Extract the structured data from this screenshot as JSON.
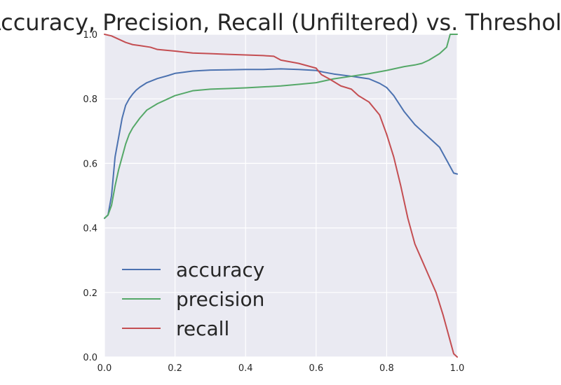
{
  "chart_data": {
    "type": "line",
    "title": "Accuracy, Precision, Recall (Unfiltered) vs. Threshold",
    "xlabel": "",
    "ylabel": "",
    "xlim": [
      0.0,
      1.0
    ],
    "ylim": [
      0.0,
      1.0
    ],
    "x_ticks": [
      "0.0",
      "0.2",
      "0.4",
      "0.6",
      "0.8",
      "1.0"
    ],
    "y_ticks": [
      "0.0",
      "0.2",
      "0.4",
      "0.6",
      "0.8",
      "1.0"
    ],
    "grid": true,
    "legend_position": "lower-left",
    "background_color": "#eaeaf2",
    "grid_color": "#ffffff",
    "series": [
      {
        "name": "accuracy",
        "color": "#4c72b0",
        "points": [
          [
            0.0,
            0.43
          ],
          [
            0.01,
            0.44
          ],
          [
            0.02,
            0.5
          ],
          [
            0.03,
            0.62
          ],
          [
            0.04,
            0.68
          ],
          [
            0.05,
            0.74
          ],
          [
            0.06,
            0.78
          ],
          [
            0.07,
            0.8
          ],
          [
            0.08,
            0.815
          ],
          [
            0.09,
            0.827
          ],
          [
            0.1,
            0.836
          ],
          [
            0.12,
            0.85
          ],
          [
            0.15,
            0.863
          ],
          [
            0.18,
            0.872
          ],
          [
            0.2,
            0.879
          ],
          [
            0.25,
            0.886
          ],
          [
            0.3,
            0.889
          ],
          [
            0.35,
            0.89
          ],
          [
            0.4,
            0.891
          ],
          [
            0.45,
            0.891
          ],
          [
            0.5,
            0.893
          ],
          [
            0.55,
            0.891
          ],
          [
            0.6,
            0.888
          ],
          [
            0.62,
            0.883
          ],
          [
            0.65,
            0.877
          ],
          [
            0.7,
            0.87
          ],
          [
            0.75,
            0.862
          ],
          [
            0.78,
            0.848
          ],
          [
            0.8,
            0.835
          ],
          [
            0.82,
            0.81
          ],
          [
            0.85,
            0.76
          ],
          [
            0.88,
            0.72
          ],
          [
            0.9,
            0.7
          ],
          [
            0.92,
            0.68
          ],
          [
            0.95,
            0.65
          ],
          [
            0.97,
            0.61
          ],
          [
            0.99,
            0.57
          ],
          [
            1.0,
            0.567
          ]
        ]
      },
      {
        "name": "precision",
        "color": "#55a868",
        "points": [
          [
            0.0,
            0.43
          ],
          [
            0.01,
            0.44
          ],
          [
            0.02,
            0.47
          ],
          [
            0.03,
            0.53
          ],
          [
            0.04,
            0.58
          ],
          [
            0.05,
            0.62
          ],
          [
            0.06,
            0.66
          ],
          [
            0.07,
            0.69
          ],
          [
            0.08,
            0.71
          ],
          [
            0.1,
            0.74
          ],
          [
            0.12,
            0.765
          ],
          [
            0.15,
            0.785
          ],
          [
            0.18,
            0.8
          ],
          [
            0.2,
            0.81
          ],
          [
            0.25,
            0.825
          ],
          [
            0.3,
            0.83
          ],
          [
            0.35,
            0.832
          ],
          [
            0.4,
            0.834
          ],
          [
            0.45,
            0.837
          ],
          [
            0.5,
            0.84
          ],
          [
            0.55,
            0.845
          ],
          [
            0.6,
            0.85
          ],
          [
            0.62,
            0.855
          ],
          [
            0.65,
            0.862
          ],
          [
            0.7,
            0.87
          ],
          [
            0.75,
            0.878
          ],
          [
            0.8,
            0.888
          ],
          [
            0.85,
            0.9
          ],
          [
            0.88,
            0.905
          ],
          [
            0.9,
            0.91
          ],
          [
            0.92,
            0.92
          ],
          [
            0.95,
            0.94
          ],
          [
            0.97,
            0.96
          ],
          [
            0.98,
            1.0
          ],
          [
            1.0,
            1.0
          ]
        ]
      },
      {
        "name": "recall",
        "color": "#c44e52",
        "points": [
          [
            0.0,
            1.0
          ],
          [
            0.02,
            0.995
          ],
          [
            0.04,
            0.985
          ],
          [
            0.06,
            0.975
          ],
          [
            0.08,
            0.968
          ],
          [
            0.1,
            0.965
          ],
          [
            0.13,
            0.96
          ],
          [
            0.15,
            0.953
          ],
          [
            0.2,
            0.948
          ],
          [
            0.25,
            0.942
          ],
          [
            0.3,
            0.94
          ],
          [
            0.35,
            0.938
          ],
          [
            0.4,
            0.936
          ],
          [
            0.45,
            0.934
          ],
          [
            0.48,
            0.932
          ],
          [
            0.5,
            0.92
          ],
          [
            0.55,
            0.91
          ],
          [
            0.6,
            0.895
          ],
          [
            0.615,
            0.875
          ],
          [
            0.64,
            0.86
          ],
          [
            0.67,
            0.84
          ],
          [
            0.7,
            0.83
          ],
          [
            0.72,
            0.81
          ],
          [
            0.75,
            0.79
          ],
          [
            0.78,
            0.75
          ],
          [
            0.8,
            0.69
          ],
          [
            0.82,
            0.62
          ],
          [
            0.84,
            0.53
          ],
          [
            0.86,
            0.43
          ],
          [
            0.88,
            0.35
          ],
          [
            0.9,
            0.3
          ],
          [
            0.92,
            0.25
          ],
          [
            0.94,
            0.2
          ],
          [
            0.96,
            0.13
          ],
          [
            0.98,
            0.05
          ],
          [
            0.99,
            0.01
          ],
          [
            1.0,
            0.0
          ]
        ]
      }
    ]
  }
}
